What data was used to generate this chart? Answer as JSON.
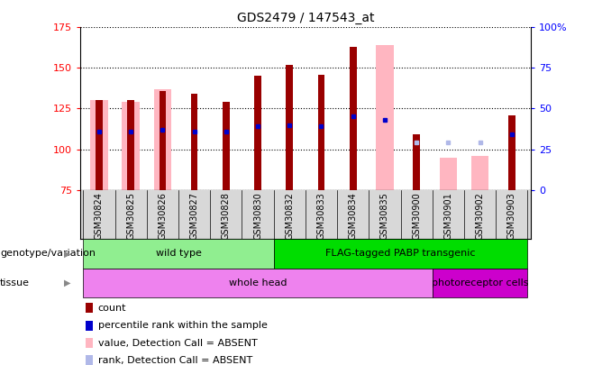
{
  "title": "GDS2479 / 147543_at",
  "samples": [
    "GSM30824",
    "GSM30825",
    "GSM30826",
    "GSM30827",
    "GSM30828",
    "GSM30830",
    "GSM30832",
    "GSM30833",
    "GSM30834",
    "GSM30835",
    "GSM30900",
    "GSM30901",
    "GSM30902",
    "GSM30903"
  ],
  "count_values": [
    130,
    130,
    136,
    134,
    129,
    145,
    152,
    146,
    163,
    null,
    109,
    null,
    null,
    121
  ],
  "absent_value_values": [
    130,
    129,
    137,
    null,
    null,
    null,
    null,
    null,
    null,
    164,
    null,
    95,
    96,
    null
  ],
  "percentile_rank_values": [
    111,
    111,
    112,
    111,
    111,
    114,
    115,
    114,
    120,
    118,
    null,
    null,
    null,
    109
  ],
  "absent_rank_values": [
    null,
    null,
    null,
    null,
    null,
    null,
    null,
    null,
    null,
    null,
    104,
    104,
    104,
    null
  ],
  "ylim_left": [
    75,
    175
  ],
  "ylim_right": [
    0,
    100
  ],
  "yticks_left": [
    75,
    100,
    125,
    150,
    175
  ],
  "yticks_right": [
    0,
    25,
    50,
    75,
    100
  ],
  "ytick_right_labels": [
    "0",
    "25",
    "50",
    "75",
    "100%"
  ],
  "genotype_groups": [
    {
      "label": "wild type",
      "start": 0,
      "end": 6,
      "color": "#90ee90"
    },
    {
      "label": "FLAG-tagged PABP transgenic",
      "start": 6,
      "end": 14,
      "color": "#00dd00"
    }
  ],
  "tissue_groups": [
    {
      "label": "whole head",
      "start": 0,
      "end": 11,
      "color": "#ee82ee"
    },
    {
      "label": "photoreceptor cells",
      "start": 11,
      "end": 14,
      "color": "#cc00cc"
    }
  ],
  "color_count": "#990000",
  "color_absent_value": "#ffb6c1",
  "color_percentile": "#0000cc",
  "color_absent_rank": "#b0b8e8",
  "absent_bar_width": 0.55,
  "count_bar_width": 0.22,
  "legend_items": [
    {
      "label": "count",
      "color": "#990000"
    },
    {
      "label": "percentile rank within the sample",
      "color": "#0000cc"
    },
    {
      "label": "value, Detection Call = ABSENT",
      "color": "#ffb6c1"
    },
    {
      "label": "rank, Detection Call = ABSENT",
      "color": "#b0b8e8"
    }
  ]
}
